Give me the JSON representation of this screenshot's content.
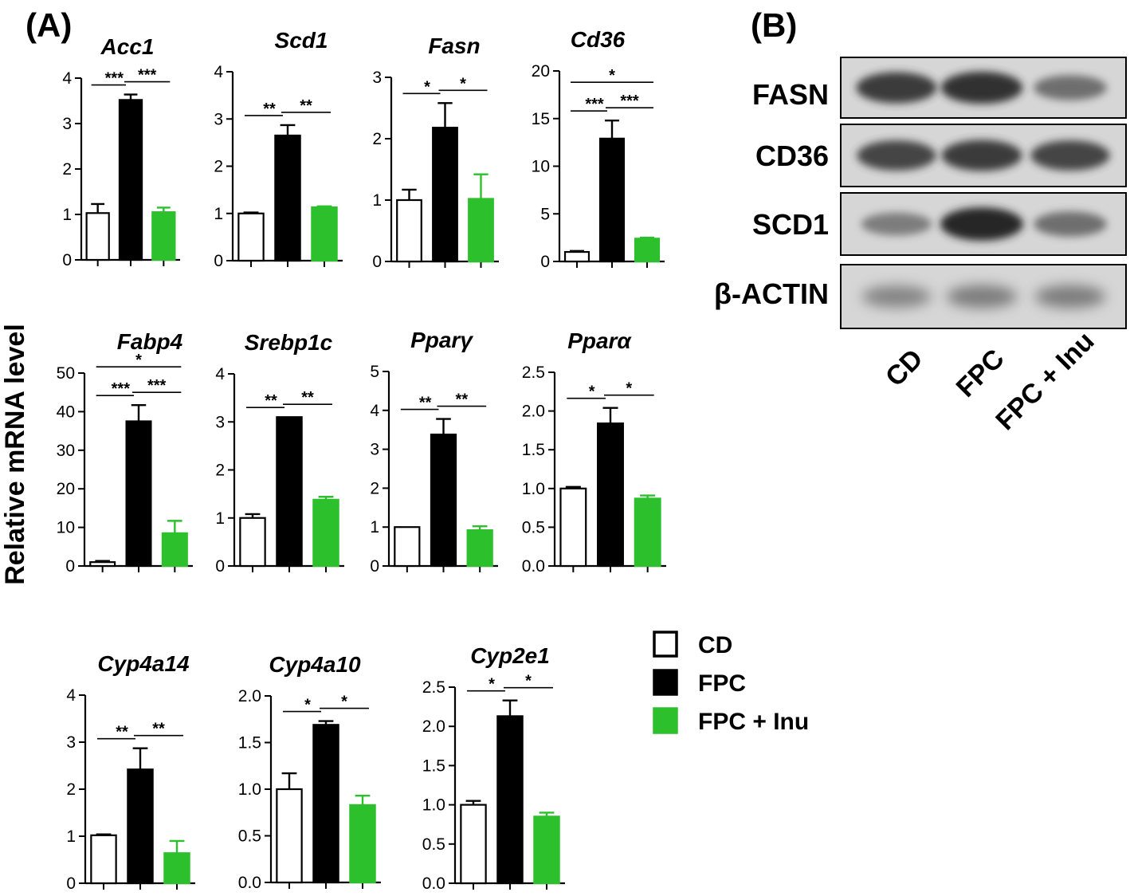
{
  "panel_labels": {
    "a": "(A)",
    "b": "(B)"
  },
  "y_axis_label": "Relative mRNA level",
  "colors": {
    "CD": "#ffffff",
    "FPC": "#000000",
    "FPC + Inu": "#2cc12c"
  },
  "legend": [
    {
      "label": "CD",
      "color": "#ffffff"
    },
    {
      "label": "FPC",
      "color": "#000000"
    },
    {
      "label": "FPC + Inu",
      "color": "#2cc12c"
    }
  ],
  "chart_data": [
    {
      "type": "bar",
      "title": "Acc1",
      "categories": [
        "CD",
        "FPC",
        "FPC + Inu"
      ],
      "values": [
        1.03,
        3.52,
        1.05
      ],
      "errors": [
        0.2,
        0.12,
        0.1
      ],
      "ylim": [
        0,
        4
      ],
      "yticks": [
        "0",
        "1",
        "2",
        "3",
        "4"
      ],
      "significance": [
        {
          "groups": [
            0,
            1
          ],
          "label": "***"
        },
        {
          "groups": [
            1,
            2
          ],
          "label": "***"
        }
      ]
    },
    {
      "type": "bar",
      "title": "Scd1",
      "categories": [
        "CD",
        "FPC",
        "FPC + Inu"
      ],
      "values": [
        1.0,
        2.65,
        1.13
      ],
      "errors": [
        0.02,
        0.22,
        0.02
      ],
      "ylim": [
        0,
        4
      ],
      "yticks": [
        "0",
        "1",
        "2",
        "3",
        "4"
      ],
      "significance": [
        {
          "groups": [
            0,
            1
          ],
          "label": "**"
        },
        {
          "groups": [
            1,
            2
          ],
          "label": "**"
        }
      ]
    },
    {
      "type": "bar",
      "title": "Fasn",
      "categories": [
        "CD",
        "FPC",
        "FPC + Inu"
      ],
      "values": [
        1.0,
        2.18,
        1.02
      ],
      "errors": [
        0.17,
        0.4,
        0.4
      ],
      "ylim": [
        0,
        3
      ],
      "yticks": [
        "0",
        "1",
        "2",
        "3"
      ],
      "significance": [
        {
          "groups": [
            0,
            1
          ],
          "label": "*"
        },
        {
          "groups": [
            1,
            2
          ],
          "label": "*"
        }
      ]
    },
    {
      "type": "bar",
      "title": "Cd36",
      "categories": [
        "CD",
        "FPC",
        "FPC + Inu"
      ],
      "values": [
        1.0,
        12.9,
        2.4
      ],
      "errors": [
        0.1,
        1.9,
        0.1
      ],
      "ylim": [
        0,
        20
      ],
      "yticks": [
        "0",
        "5",
        "10",
        "15",
        "20"
      ],
      "significance": [
        {
          "groups": [
            0,
            1
          ],
          "label": "***"
        },
        {
          "groups": [
            1,
            2
          ],
          "label": "***"
        },
        {
          "groups": [
            0,
            2
          ],
          "label": "*"
        }
      ]
    },
    {
      "type": "bar",
      "title": "Fabp4",
      "categories": [
        "CD",
        "FPC",
        "FPC + Inu"
      ],
      "values": [
        1.0,
        37.5,
        8.5
      ],
      "errors": [
        0.3,
        4.2,
        3.2
      ],
      "ylim": [
        0,
        50
      ],
      "yticks": [
        "0",
        "10",
        "20",
        "30",
        "40",
        "50"
      ],
      "significance": [
        {
          "groups": [
            0,
            1
          ],
          "label": "***"
        },
        {
          "groups": [
            1,
            2
          ],
          "label": "***"
        },
        {
          "groups": [
            0,
            2
          ],
          "label": "*"
        }
      ]
    },
    {
      "type": "bar",
      "title": "Srebp1c",
      "categories": [
        "CD",
        "FPC",
        "FPC + Inu"
      ],
      "values": [
        1.0,
        3.1,
        1.38
      ],
      "errors": [
        0.08,
        0.0,
        0.06
      ],
      "ylim": [
        0,
        4
      ],
      "yticks": [
        "0",
        "1",
        "2",
        "3",
        "4"
      ],
      "significance": [
        {
          "groups": [
            0,
            1
          ],
          "label": "**"
        },
        {
          "groups": [
            1,
            2
          ],
          "label": "**"
        }
      ]
    },
    {
      "type": "bar",
      "title": "Pparγ",
      "categories": [
        "CD",
        "FPC",
        "FPC + Inu"
      ],
      "values": [
        1.0,
        3.38,
        0.92
      ],
      "errors": [
        0.0,
        0.4,
        0.1
      ],
      "ylim": [
        0,
        5
      ],
      "yticks": [
        "0",
        "1",
        "2",
        "3",
        "4",
        "5"
      ],
      "significance": [
        {
          "groups": [
            0,
            1
          ],
          "label": "**"
        },
        {
          "groups": [
            1,
            2
          ],
          "label": "**"
        }
      ]
    },
    {
      "type": "bar",
      "title": "Pparα",
      "categories": [
        "CD",
        "FPC",
        "FPC + Inu"
      ],
      "values": [
        1.0,
        1.84,
        0.87
      ],
      "errors": [
        0.02,
        0.2,
        0.04
      ],
      "ylim": [
        0,
        2.5
      ],
      "yticks": [
        "0.0",
        "0.5",
        "1.0",
        "1.5",
        "2.0",
        "2.5"
      ],
      "significance": [
        {
          "groups": [
            0,
            1
          ],
          "label": "*"
        },
        {
          "groups": [
            1,
            2
          ],
          "label": "*"
        }
      ]
    },
    {
      "type": "bar",
      "title": "Cyp4a14",
      "categories": [
        "CD",
        "FPC",
        "FPC + Inu"
      ],
      "values": [
        1.02,
        2.42,
        0.64
      ],
      "errors": [
        0.02,
        0.45,
        0.26
      ],
      "ylim": [
        0,
        4
      ],
      "yticks": [
        "0",
        "1",
        "2",
        "3",
        "4"
      ],
      "significance": [
        {
          "groups": [
            0,
            1
          ],
          "label": "**"
        },
        {
          "groups": [
            1,
            2
          ],
          "label": "**"
        }
      ]
    },
    {
      "type": "bar",
      "title": "Cyp4a10",
      "categories": [
        "CD",
        "FPC",
        "FPC + Inu"
      ],
      "values": [
        1.0,
        1.69,
        0.83
      ],
      "errors": [
        0.17,
        0.04,
        0.1
      ],
      "ylim": [
        0,
        2.0
      ],
      "yticks": [
        "0.0",
        "0.5",
        "1.0",
        "1.5",
        "2.0"
      ],
      "significance": [
        {
          "groups": [
            0,
            1
          ],
          "label": "*"
        },
        {
          "groups": [
            1,
            2
          ],
          "label": "*"
        }
      ]
    },
    {
      "type": "bar",
      "title": "Cyp2e1",
      "categories": [
        "CD",
        "FPC",
        "FPC + Inu"
      ],
      "values": [
        1.0,
        2.13,
        0.85
      ],
      "errors": [
        0.05,
        0.2,
        0.05
      ],
      "ylim": [
        0,
        2.5
      ],
      "yticks": [
        "0.0",
        "0.5",
        "1.0",
        "1.5",
        "2.0",
        "2.5"
      ],
      "significance": [
        {
          "groups": [
            0,
            1
          ],
          "label": "*"
        },
        {
          "groups": [
            1,
            2
          ],
          "label": "*"
        }
      ]
    }
  ],
  "western_blot": {
    "proteins": [
      "FASN",
      "CD36",
      "SCD1",
      "β-ACTIN"
    ],
    "lanes": [
      "CD",
      "FPC",
      "FPC + Inu"
    ],
    "band_intensity": [
      [
        0.9,
        0.95,
        0.6
      ],
      [
        0.85,
        0.9,
        0.85
      ],
      [
        0.5,
        1.0,
        0.6
      ],
      [
        0.45,
        0.5,
        0.5
      ]
    ]
  }
}
